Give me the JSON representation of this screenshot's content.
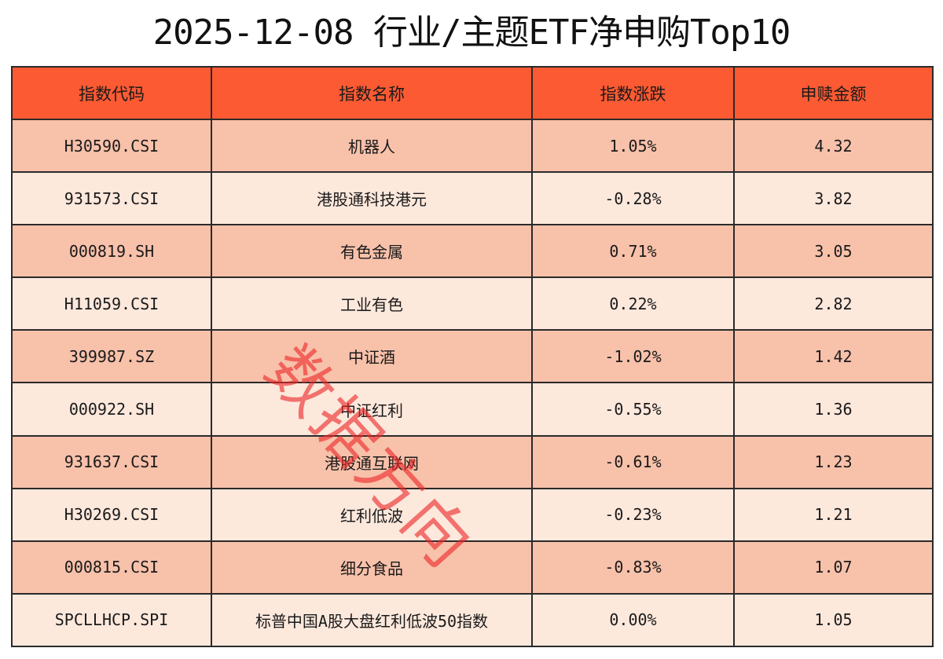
{
  "title": "2025-12-08 行业/主题ETF净申购Top10",
  "table": {
    "headers": [
      "指数代码",
      "指数名称",
      "指数涨跌",
      "申赎金额"
    ],
    "rows": [
      [
        "H30590.CSI",
        "机器人",
        "1.05%",
        "4.32"
      ],
      [
        "931573.CSI",
        "港股通科技港元",
        "-0.28%",
        "3.82"
      ],
      [
        "000819.SH",
        "有色金属",
        "0.71%",
        "3.05"
      ],
      [
        "H11059.CSI",
        "工业有色",
        "0.22%",
        "2.82"
      ],
      [
        "399987.SZ",
        "中证酒",
        "-1.02%",
        "1.42"
      ],
      [
        "000922.SH",
        "中证红利",
        "-0.55%",
        "1.36"
      ],
      [
        "931637.CSI",
        "港股通互联网",
        "-0.61%",
        "1.23"
      ],
      [
        "H30269.CSI",
        "红利低波",
        "-0.23%",
        "1.21"
      ],
      [
        "000815.CSI",
        "细分食品",
        "-0.83%",
        "1.07"
      ],
      [
        "SPCLLHCP.SPI",
        "标普中国A股大盘红利低波50指数",
        "0.00%",
        "1.05"
      ]
    ]
  },
  "watermark": "数据方向",
  "colors": {
    "header_bg": "#fb5a33",
    "row_odd_bg": "#f8c1aa",
    "row_even_bg": "#fde8dc",
    "watermark": "#eb2828"
  }
}
